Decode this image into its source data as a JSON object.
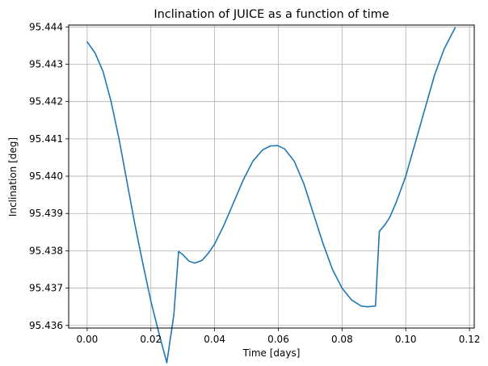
{
  "chart_data": {
    "type": "line",
    "title": "Inclination of JUICE as a function of time",
    "xlabel": "Time [days]",
    "ylabel": "Inclination [deg]",
    "xlim": [
      -0.0058,
      0.1215
    ],
    "ylim": [
      95.43593,
      95.44405
    ],
    "xticks": [
      0.0,
      0.02,
      0.04,
      0.06,
      0.08,
      0.1,
      0.12
    ],
    "xtick_labels": [
      "0.00",
      "0.02",
      "0.04",
      "0.06",
      "0.08",
      "0.10",
      "0.12"
    ],
    "yticks": [
      95.436,
      95.437,
      95.438,
      95.439,
      95.44,
      95.441,
      95.442,
      95.443,
      95.444
    ],
    "ytick_labels": [
      "95.436",
      "95.437",
      "95.438",
      "95.439",
      "95.440",
      "95.441",
      "95.442",
      "95.443",
      "95.444"
    ],
    "grid": true,
    "series": [
      {
        "color": "#1f77b4",
        "x": [
          0.0,
          0.0025,
          0.005,
          0.0075,
          0.01,
          0.0125,
          0.015,
          0.0175,
          0.02,
          0.0225,
          0.025,
          0.0272,
          0.0287,
          0.03,
          0.032,
          0.0338,
          0.036,
          0.038,
          0.04,
          0.043,
          0.046,
          0.049,
          0.052,
          0.055,
          0.0575,
          0.0598,
          0.062,
          0.065,
          0.068,
          0.071,
          0.074,
          0.077,
          0.08,
          0.083,
          0.086,
          0.088,
          0.0905,
          0.0917,
          0.0935,
          0.095,
          0.097,
          0.1,
          0.103,
          0.106,
          0.109,
          0.112,
          0.1155
        ],
        "y": [
          95.4436,
          95.4433,
          95.4428,
          95.442,
          95.441,
          95.43985,
          95.4387,
          95.43765,
          95.43665,
          95.4358,
          95.435,
          95.43628,
          95.43798,
          95.4379,
          95.43772,
          95.43767,
          95.43774,
          95.43793,
          95.43818,
          95.4387,
          95.4393,
          95.4399,
          95.4404,
          95.4407,
          95.44081,
          95.44082,
          95.44073,
          95.4404,
          95.4398,
          95.439,
          95.4382,
          95.4375,
          95.437,
          95.43668,
          95.43652,
          95.4365,
          95.43652,
          95.43852,
          95.4387,
          95.4389,
          95.4393,
          95.44,
          95.4409,
          95.4418,
          95.4427,
          95.4434,
          95.44398
        ]
      }
    ]
  }
}
